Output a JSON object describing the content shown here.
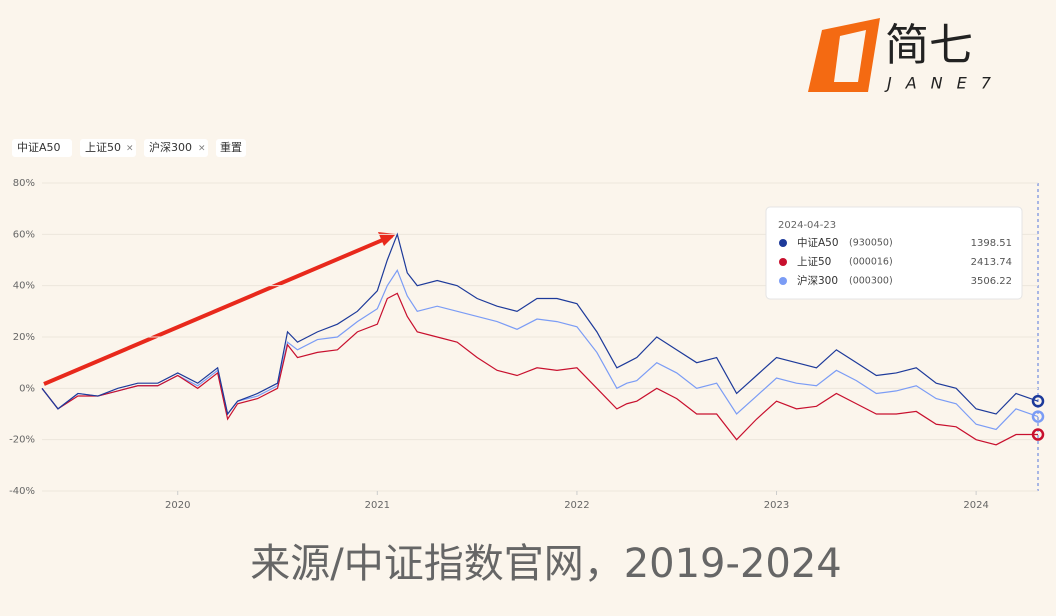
{
  "brand": {
    "name": "简七",
    "subname": "JANE7"
  },
  "filters": {
    "chips": [
      "中证A50",
      "上证50",
      "沪深300"
    ],
    "reset": "重置"
  },
  "chart_data": {
    "type": "line",
    "x": [
      2019.32,
      2019.4,
      2019.5,
      2019.6,
      2019.7,
      2019.8,
      2019.9,
      2020.0,
      2020.1,
      2020.2,
      2020.25,
      2020.3,
      2020.4,
      2020.5,
      2020.55,
      2020.6,
      2020.7,
      2020.8,
      2020.9,
      2021.0,
      2021.05,
      2021.1,
      2021.15,
      2021.2,
      2021.3,
      2021.4,
      2021.5,
      2021.6,
      2021.7,
      2021.8,
      2021.9,
      2022.0,
      2022.1,
      2022.2,
      2022.25,
      2022.3,
      2022.4,
      2022.5,
      2022.6,
      2022.7,
      2022.8,
      2022.9,
      2023.0,
      2023.1,
      2023.2,
      2023.3,
      2023.4,
      2023.5,
      2023.6,
      2023.7,
      2023.8,
      2023.9,
      2024.0,
      2024.1,
      2024.2,
      2024.31
    ],
    "series": [
      {
        "name": "中证A50",
        "color": "#1d3a9a",
        "values": [
          0,
          -8,
          -2,
          -3,
          0,
          2,
          2,
          6,
          2,
          8,
          -10,
          -5,
          -2,
          2,
          22,
          18,
          22,
          25,
          30,
          38,
          50,
          60,
          45,
          40,
          42,
          40,
          35,
          32,
          30,
          35,
          35,
          33,
          22,
          8,
          10,
          12,
          20,
          15,
          10,
          12,
          -2,
          5,
          12,
          10,
          8,
          15,
          10,
          5,
          6,
          8,
          2,
          0,
          -8,
          -10,
          -2,
          -5
        ]
      },
      {
        "name": "上证50",
        "color": "#c8102e",
        "values": [
          0,
          -8,
          -3,
          -3,
          -1,
          1,
          1,
          5,
          0,
          6,
          -12,
          -6,
          -4,
          0,
          17,
          12,
          14,
          15,
          22,
          25,
          35,
          37,
          28,
          22,
          20,
          18,
          12,
          7,
          5,
          8,
          7,
          8,
          0,
          -8,
          -6,
          -5,
          0,
          -4,
          -10,
          -10,
          -20,
          -12,
          -5,
          -8,
          -7,
          -2,
          -6,
          -10,
          -10,
          -9,
          -14,
          -15,
          -20,
          -22,
          -18,
          -18
        ]
      },
      {
        "name": "沪深300",
        "color": "#7b9cf5",
        "values": [
          0,
          -8,
          -2,
          -3,
          -1,
          1,
          1,
          5,
          1,
          7,
          -10,
          -5,
          -3,
          1,
          18,
          15,
          19,
          20,
          26,
          31,
          40,
          46,
          36,
          30,
          32,
          30,
          28,
          26,
          23,
          27,
          26,
          24,
          14,
          0,
          2,
          3,
          10,
          6,
          0,
          2,
          -10,
          -3,
          4,
          2,
          1,
          7,
          3,
          -2,
          -1,
          1,
          -4,
          -6,
          -14,
          -16,
          -8,
          -11
        ]
      }
    ],
    "xlim": [
      2019.32,
      2024.31
    ],
    "xticks": [
      2020,
      2021,
      2022,
      2023,
      2024
    ],
    "ylim": [
      -40,
      80
    ],
    "yticks": [
      {
        "value": -40,
        "label": "-40%"
      },
      {
        "value": -20,
        "label": "-20%"
      },
      {
        "value": 0,
        "label": "0%"
      },
      {
        "value": 20,
        "label": "20%"
      },
      {
        "value": 40,
        "label": "40%"
      },
      {
        "value": 60,
        "label": "60%"
      },
      {
        "value": 80,
        "label": "80%"
      }
    ],
    "grid": true,
    "tooltip": {
      "date": "2024-04-23",
      "rows": [
        {
          "code": "(930050)",
          "value": 1398.51
        },
        {
          "code": "(000016)",
          "value": 2413.74
        },
        {
          "code": "(000300)",
          "value": 3506.22
        }
      ]
    }
  },
  "caption": "来源/中证指数官网，2019-2024"
}
